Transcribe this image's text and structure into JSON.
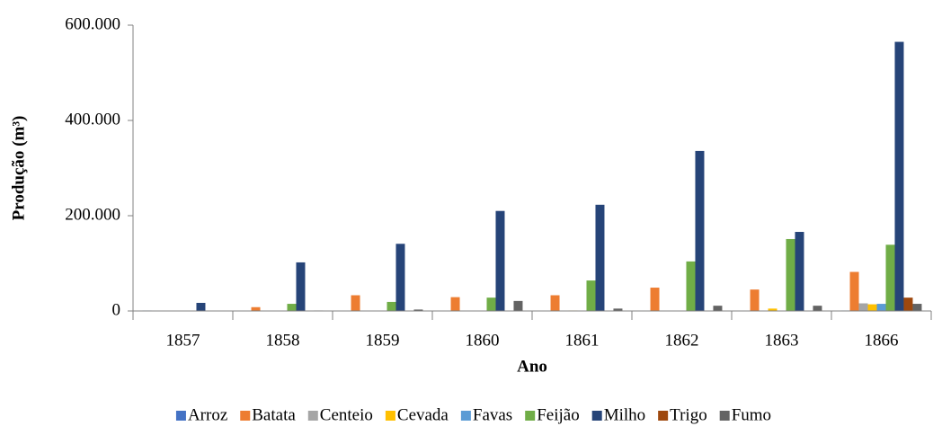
{
  "chart_data": {
    "type": "bar",
    "x_label": "Ano",
    "y_label": "Produção (m³)",
    "categories": [
      "1857",
      "1858",
      "1859",
      "1860",
      "1861",
      "1862",
      "1863",
      "1866"
    ],
    "series": [
      {
        "name": "Arroz",
        "color": "#4472c4",
        "values": [
          1000,
          0,
          0,
          0,
          0,
          0,
          0,
          1000
        ]
      },
      {
        "name": "Batata",
        "color": "#ed7d31",
        "values": [
          0,
          8000,
          33000,
          29000,
          33000,
          49000,
          45000,
          82000
        ]
      },
      {
        "name": "Centeio",
        "color": "#a5a5a5",
        "values": [
          0,
          0,
          0,
          0,
          0,
          0,
          0,
          16000
        ]
      },
      {
        "name": "Cevada",
        "color": "#ffc000",
        "values": [
          0,
          0,
          0,
          0,
          1000,
          0,
          5000,
          14000
        ]
      },
      {
        "name": "Favas",
        "color": "#5b9bd5",
        "values": [
          0,
          0,
          0,
          0,
          0,
          0,
          0,
          15000
        ]
      },
      {
        "name": "Feijão",
        "color": "#70ad47",
        "values": [
          0,
          15000,
          19000,
          28000,
          64000,
          104000,
          151000,
          139000
        ]
      },
      {
        "name": "Milho",
        "color": "#264478",
        "values": [
          17000,
          102000,
          141000,
          210000,
          223000,
          336000,
          166000,
          565000
        ]
      },
      {
        "name": "Trigo",
        "color": "#9e480e",
        "values": [
          0,
          0,
          0,
          0,
          0,
          0,
          0,
          28000
        ]
      },
      {
        "name": "Fumo",
        "color": "#636363",
        "values": [
          0,
          1000,
          3000,
          21000,
          5000,
          11000,
          11000,
          15000
        ]
      }
    ],
    "ylim": [
      0,
      600000
    ],
    "yticks": [
      0,
      {
        "value": 200000,
        "label": "200.000"
      },
      {
        "value": 400000,
        "label": "400.000"
      },
      {
        "value": 600000,
        "label": "600.000"
      }
    ],
    "grid": false,
    "legend": "bottom"
  }
}
